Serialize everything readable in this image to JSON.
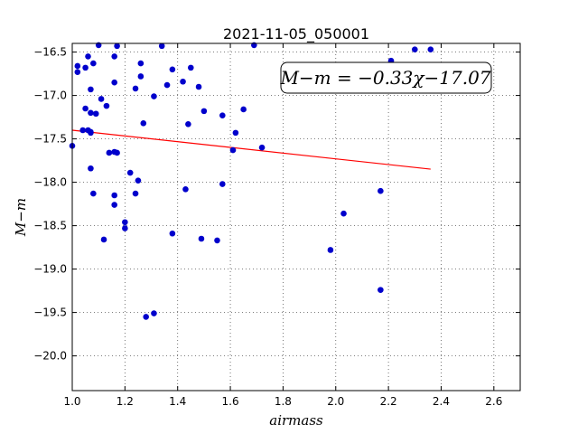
{
  "chart_data": {
    "type": "scatter",
    "title": "2021-11-05_050001",
    "xlabel": "airmass",
    "ylabel": "M−m",
    "xlim": [
      1.0,
      2.7
    ],
    "ylim": [
      -20.4,
      -16.4
    ],
    "x_ticks": [
      1.0,
      1.2,
      1.4,
      1.6,
      1.8,
      2.0,
      2.2,
      2.4,
      2.6
    ],
    "y_ticks": [
      -16.5,
      -17.0,
      -17.5,
      -18.0,
      -18.5,
      -19.0,
      -19.5,
      -20.0
    ],
    "x_tick_labels": [
      "1.0",
      "1.2",
      "1.4",
      "1.6",
      "1.8",
      "2.0",
      "2.2",
      "2.4",
      "2.6"
    ],
    "y_tick_labels": [
      "−16.5",
      "−17.0",
      "−17.5",
      "−18.0",
      "−18.5",
      "−19.0",
      "−19.5",
      "−20.0"
    ],
    "grid": true,
    "annotation": "M−m = −0.33χ−17.07",
    "fit": {
      "slope": -0.33,
      "intercept": -17.07,
      "x_start": 1.0,
      "x_end": 2.36,
      "color": "#ff0000"
    },
    "marker_color": "#0000cc",
    "points": [
      [
        1.0,
        -17.58
      ],
      [
        1.02,
        -16.66
      ],
      [
        1.02,
        -16.73
      ],
      [
        1.04,
        -17.4
      ],
      [
        1.05,
        -17.15
      ],
      [
        1.05,
        -16.68
      ],
      [
        1.06,
        -16.55
      ],
      [
        1.06,
        -17.4
      ],
      [
        1.07,
        -17.2
      ],
      [
        1.07,
        -17.42
      ],
      [
        1.07,
        -17.43
      ],
      [
        1.07,
        -16.93
      ],
      [
        1.07,
        -17.84
      ],
      [
        1.08,
        -16.63
      ],
      [
        1.08,
        -18.13
      ],
      [
        1.09,
        -17.21
      ],
      [
        1.1,
        -16.42
      ],
      [
        1.11,
        -17.04
      ],
      [
        1.12,
        -18.66
      ],
      [
        1.13,
        -17.12
      ],
      [
        1.14,
        -17.66
      ],
      [
        1.16,
        -16.85
      ],
      [
        1.16,
        -17.65
      ],
      [
        1.16,
        -18.15
      ],
      [
        1.16,
        -18.26
      ],
      [
        1.16,
        -16.55
      ],
      [
        1.17,
        -16.43
      ],
      [
        1.17,
        -17.66
      ],
      [
        1.2,
        -18.53
      ],
      [
        1.2,
        -18.46
      ],
      [
        1.22,
        -17.89
      ],
      [
        1.24,
        -16.92
      ],
      [
        1.24,
        -18.13
      ],
      [
        1.25,
        -17.98
      ],
      [
        1.26,
        -16.63
      ],
      [
        1.26,
        -16.78
      ],
      [
        1.27,
        -17.32
      ],
      [
        1.28,
        -19.55
      ],
      [
        1.31,
        -17.01
      ],
      [
        1.31,
        -19.51
      ],
      [
        1.34,
        -16.43
      ],
      [
        1.36,
        -16.88
      ],
      [
        1.38,
        -16.7
      ],
      [
        1.38,
        -18.59
      ],
      [
        1.42,
        -16.84
      ],
      [
        1.43,
        -18.08
      ],
      [
        1.44,
        -17.33
      ],
      [
        1.45,
        -16.68
      ],
      [
        1.48,
        -16.9
      ],
      [
        1.49,
        -18.65
      ],
      [
        1.5,
        -17.18
      ],
      [
        1.55,
        -18.67
      ],
      [
        1.57,
        -17.23
      ],
      [
        1.57,
        -18.02
      ],
      [
        1.61,
        -17.63
      ],
      [
        1.62,
        -17.43
      ],
      [
        1.65,
        -17.16
      ],
      [
        1.69,
        -16.42
      ],
      [
        1.72,
        -17.6
      ],
      [
        1.98,
        -18.78
      ],
      [
        2.03,
        -18.36
      ],
      [
        2.17,
        -18.1
      ],
      [
        2.17,
        -19.24
      ],
      [
        2.21,
        -16.6
      ],
      [
        2.3,
        -16.47
      ],
      [
        2.36,
        -16.47
      ]
    ]
  }
}
